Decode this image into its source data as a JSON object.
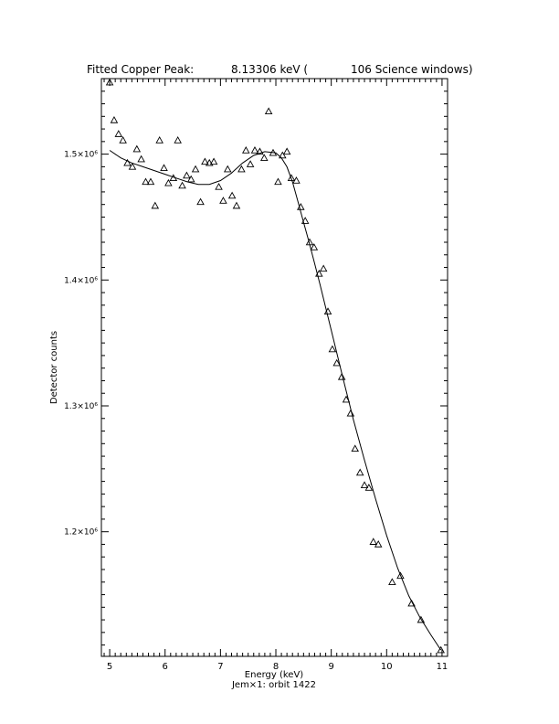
{
  "chart_data": {
    "type": "scatter",
    "title_left": "Fitted Copper Peak:",
    "title_value": "8.13306 keV (",
    "title_right": "106 Science windows)",
    "xlabel": "Energy (keV)",
    "xlabel2": "Jem×1: orbit 1422",
    "ylabel": "Detector counts",
    "xlim": [
      4.85,
      11.1
    ],
    "ylim": [
      1101000,
      1560000
    ],
    "x_ticks": [
      5,
      6,
      7,
      8,
      9,
      10,
      11
    ],
    "x_tick_labels": [
      "5",
      "6",
      "7",
      "8",
      "9",
      "10",
      "11"
    ],
    "y_ticks": [
      1200000,
      1300000,
      1400000,
      1500000
    ],
    "y_tick_labels": [
      "1.2×10⁶",
      "1.3×10⁶",
      "1.4×10⁶",
      "1.5×10⁶"
    ],
    "points": [
      [
        5.0,
        1557000
      ],
      [
        5.08,
        1527000
      ],
      [
        5.16,
        1516000
      ],
      [
        5.24,
        1511000
      ],
      [
        5.32,
        1493000
      ],
      [
        5.41,
        1490000
      ],
      [
        5.49,
        1504000
      ],
      [
        5.57,
        1496000
      ],
      [
        5.65,
        1478000
      ],
      [
        5.74,
        1478000
      ],
      [
        5.82,
        1459000
      ],
      [
        5.9,
        1511000
      ],
      [
        5.98,
        1489000
      ],
      [
        6.06,
        1477000
      ],
      [
        6.15,
        1481000
      ],
      [
        6.23,
        1511000
      ],
      [
        6.31,
        1475000
      ],
      [
        6.39,
        1483000
      ],
      [
        6.47,
        1480000
      ],
      [
        6.55,
        1488000
      ],
      [
        6.64,
        1462000
      ],
      [
        6.72,
        1494000
      ],
      [
        6.8,
        1493000
      ],
      [
        6.88,
        1494000
      ],
      [
        6.97,
        1474000
      ],
      [
        7.05,
        1463000
      ],
      [
        7.13,
        1488000
      ],
      [
        7.21,
        1467000
      ],
      [
        7.29,
        1459000
      ],
      [
        7.38,
        1488000
      ],
      [
        7.46,
        1503000
      ],
      [
        7.54,
        1492000
      ],
      [
        7.62,
        1503000
      ],
      [
        7.71,
        1502000
      ],
      [
        7.79,
        1497000
      ],
      [
        7.87,
        1534000
      ],
      [
        7.95,
        1501000
      ],
      [
        8.04,
        1478000
      ],
      [
        8.12,
        1499000
      ],
      [
        8.2,
        1502000
      ],
      [
        8.28,
        1481000
      ],
      [
        8.37,
        1479000
      ],
      [
        8.45,
        1458000
      ],
      [
        8.53,
        1447000
      ],
      [
        8.61,
        1430000
      ],
      [
        8.69,
        1426000
      ],
      [
        8.78,
        1405000
      ],
      [
        8.86,
        1409000
      ],
      [
        8.94,
        1375000
      ],
      [
        9.02,
        1345000
      ],
      [
        9.1,
        1334000
      ],
      [
        9.19,
        1323000
      ],
      [
        9.27,
        1305000
      ],
      [
        9.35,
        1294000
      ],
      [
        9.43,
        1266000
      ],
      [
        9.52,
        1247000
      ],
      [
        9.6,
        1237000
      ],
      [
        9.68,
        1235000
      ],
      [
        9.76,
        1192000
      ],
      [
        9.85,
        1190000
      ],
      [
        10.1,
        1160000
      ],
      [
        10.25,
        1165000
      ],
      [
        10.45,
        1143000
      ],
      [
        10.62,
        1130000
      ],
      [
        10.98,
        1106000
      ]
    ],
    "fit_line": {
      "x": [
        5.0,
        5.2,
        5.4,
        5.6,
        5.8,
        6.0,
        6.2,
        6.4,
        6.6,
        6.8,
        7.0,
        7.2,
        7.4,
        7.6,
        7.8,
        8.0,
        8.1,
        8.2,
        8.3,
        8.4,
        8.5,
        8.6,
        8.7,
        8.8,
        8.9,
        9.0,
        9.2,
        9.4,
        9.6,
        9.8,
        10.0,
        10.2,
        10.4,
        10.6,
        10.8,
        10.98
      ],
      "y": [
        1503000,
        1497000,
        1493000,
        1490000,
        1487000,
        1484000,
        1481000,
        1478000,
        1476000,
        1476000,
        1479000,
        1485000,
        1493000,
        1499000,
        1502000,
        1501000,
        1497000,
        1490000,
        1478000,
        1462000,
        1446000,
        1430000,
        1413000,
        1396000,
        1378000,
        1360000,
        1324000,
        1289000,
        1257000,
        1226000,
        1197000,
        1171000,
        1149000,
        1132000,
        1118000,
        1106000
      ]
    }
  }
}
